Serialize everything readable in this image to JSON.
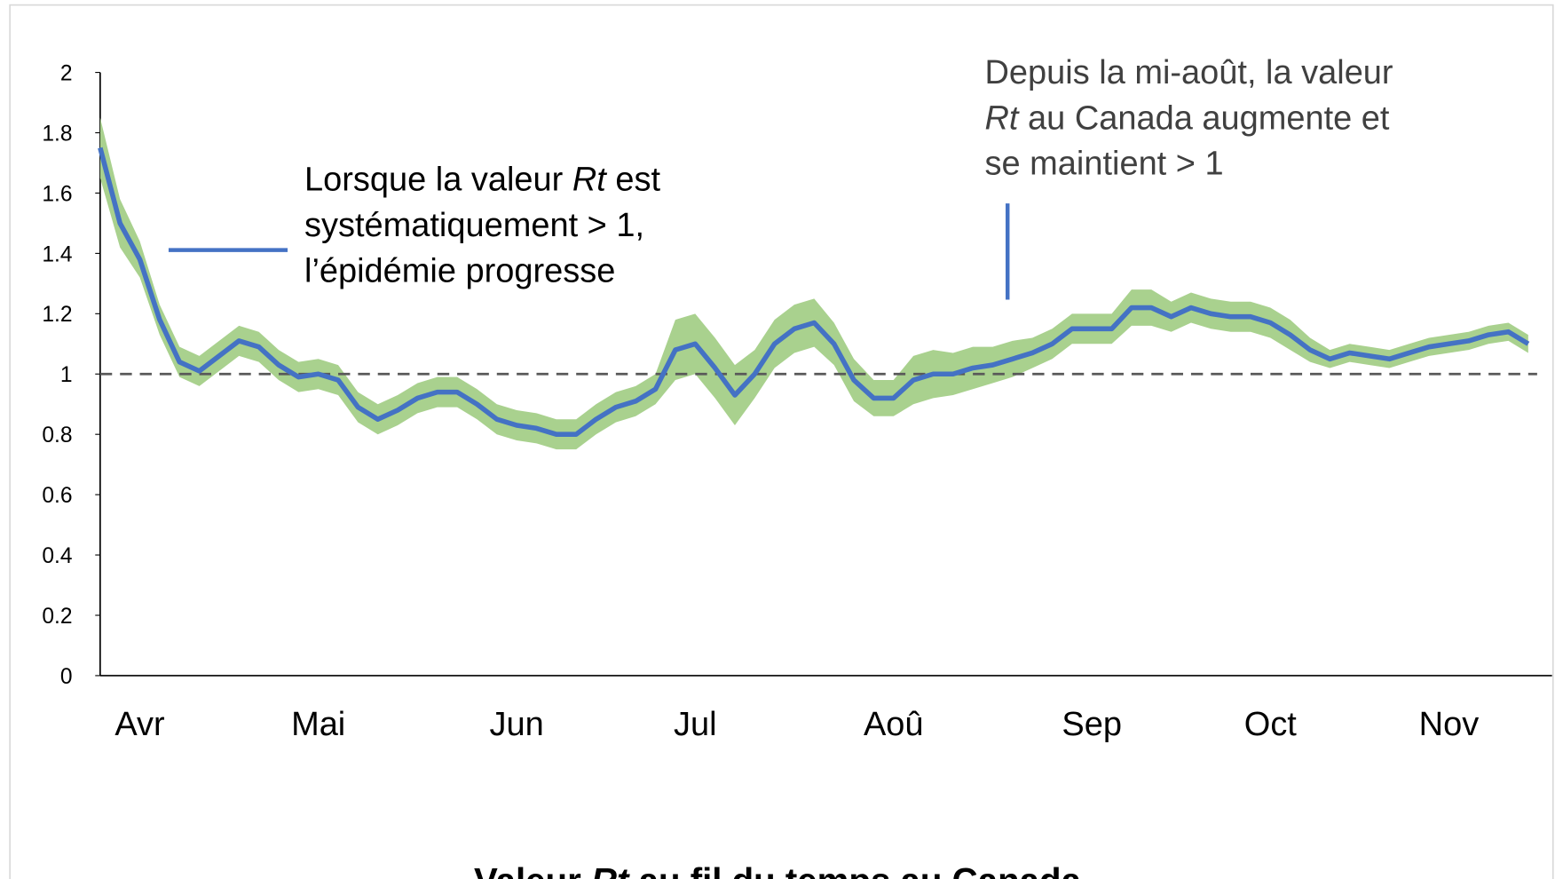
{
  "chart_data": {
    "type": "line",
    "title": [
      "Valeur ",
      "Rt",
      " au fil du temps au Canada"
    ],
    "categories": [
      null,
      null,
      "Avr",
      null,
      null,
      null,
      null,
      null,
      null,
      null,
      null,
      "Mai",
      null,
      null,
      null,
      null,
      null,
      null,
      null,
      null,
      null,
      "Jun",
      null,
      null,
      null,
      null,
      null,
      null,
      null,
      null,
      "Jul",
      null,
      null,
      null,
      null,
      null,
      null,
      null,
      null,
      null,
      "Aoû",
      null,
      null,
      null,
      null,
      null,
      null,
      null,
      null,
      null,
      "Sep",
      null,
      null,
      null,
      null,
      null,
      null,
      null,
      null,
      "Oct",
      null,
      null,
      null,
      null,
      null,
      null,
      null,
      null,
      "Nov",
      null,
      null,
      null,
      null
    ],
    "series": [
      {
        "color": "#4472c4",
        "values": [
          1.75,
          1.5,
          1.38,
          1.18,
          1.04,
          1.01,
          1.06,
          1.11,
          1.09,
          1.03,
          0.99,
          1.0,
          0.98,
          0.89,
          0.85,
          0.88,
          0.92,
          0.94,
          0.94,
          0.9,
          0.85,
          0.83,
          0.82,
          0.8,
          0.8,
          0.85,
          0.89,
          0.91,
          0.95,
          1.08,
          1.1,
          1.02,
          0.93,
          1.0,
          1.1,
          1.15,
          1.17,
          1.1,
          0.98,
          0.92,
          0.92,
          0.98,
          1.0,
          1.0,
          1.02,
          1.03,
          1.05,
          1.07,
          1.1,
          1.15,
          1.15,
          1.15,
          1.22,
          1.22,
          1.19,
          1.22,
          1.2,
          1.19,
          1.19,
          1.17,
          1.13,
          1.08,
          1.05,
          1.07,
          1.06,
          1.05,
          1.07,
          1.09,
          1.1,
          1.11,
          1.13,
          1.14,
          1.1
        ]
      }
    ],
    "band": {
      "color": "#a9d18e",
      "lower": [
        1.65,
        1.42,
        1.32,
        1.13,
        0.99,
        0.96,
        1.01,
        1.06,
        1.04,
        0.98,
        0.94,
        0.95,
        0.93,
        0.84,
        0.8,
        0.83,
        0.87,
        0.89,
        0.89,
        0.85,
        0.8,
        0.78,
        0.77,
        0.75,
        0.75,
        0.8,
        0.84,
        0.86,
        0.9,
        0.98,
        1.0,
        0.92,
        0.83,
        0.92,
        1.02,
        1.07,
        1.09,
        1.03,
        0.91,
        0.86,
        0.86,
        0.9,
        0.92,
        0.93,
        0.95,
        0.97,
        0.99,
        1.02,
        1.05,
        1.1,
        1.1,
        1.1,
        1.16,
        1.16,
        1.14,
        1.17,
        1.15,
        1.14,
        1.14,
        1.12,
        1.08,
        1.04,
        1.02,
        1.04,
        1.03,
        1.02,
        1.04,
        1.06,
        1.07,
        1.08,
        1.1,
        1.11,
        1.07
      ],
      "upper": [
        1.85,
        1.58,
        1.44,
        1.23,
        1.09,
        1.06,
        1.11,
        1.16,
        1.14,
        1.08,
        1.04,
        1.05,
        1.03,
        0.94,
        0.9,
        0.93,
        0.97,
        0.99,
        0.99,
        0.95,
        0.9,
        0.88,
        0.87,
        0.85,
        0.85,
        0.9,
        0.94,
        0.96,
        1.0,
        1.18,
        1.2,
        1.12,
        1.03,
        1.08,
        1.18,
        1.23,
        1.25,
        1.17,
        1.05,
        0.98,
        0.98,
        1.06,
        1.08,
        1.07,
        1.09,
        1.09,
        1.11,
        1.12,
        1.15,
        1.2,
        1.2,
        1.2,
        1.28,
        1.28,
        1.24,
        1.27,
        1.25,
        1.24,
        1.24,
        1.22,
        1.18,
        1.12,
        1.08,
        1.1,
        1.09,
        1.08,
        1.1,
        1.12,
        1.13,
        1.14,
        1.16,
        1.17,
        1.13
      ]
    },
    "reference_line": {
      "value": 1,
      "color": "#595959"
    },
    "ylim": [
      0,
      2
    ],
    "yticks": [
      0,
      0.2,
      0.4,
      0.6,
      0.8,
      1,
      1.2,
      1.4,
      1.6,
      1.8,
      2
    ],
    "grid": false,
    "annotations": [
      {
        "color": "#000000",
        "lines": [
          [
            "Lorsque la valeur ",
            "Rt",
            " est"
          ],
          [
            "systématiquement > 1,"
          ],
          [
            "l’épidémie progresse"
          ]
        ]
      },
      {
        "color": "#404040",
        "lines": [
          [
            "Depuis la mi-août, la valeur"
          ],
          [
            "",
            "Rt",
            " au Canada augmente et"
          ],
          [
            "se maintient > 1"
          ]
        ]
      }
    ]
  }
}
